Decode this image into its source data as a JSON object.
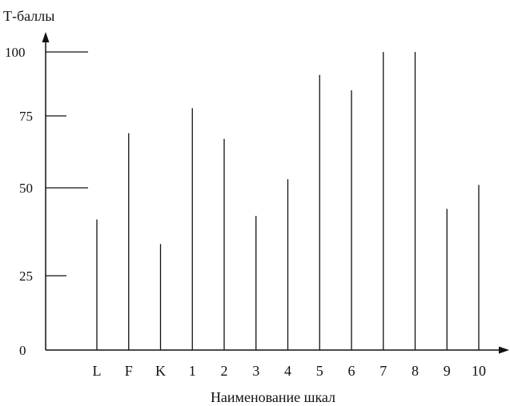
{
  "chart_data": {
    "type": "bar",
    "title": "",
    "ylabel": "Т-баллы",
    "xlabel": "Наименование шкал",
    "categories": [
      "L",
      "F",
      "K",
      "1",
      "2",
      "3",
      "4",
      "5",
      "6",
      "7",
      "8",
      "9",
      "10"
    ],
    "values": [
      41,
      69,
      34,
      78,
      67,
      42,
      53,
      91,
      85,
      100,
      100,
      44,
      51
    ],
    "y_ticks": [
      "100",
      "75",
      "50",
      "25",
      "0"
    ],
    "grid": false,
    "legend": "none",
    "color": "#111111"
  }
}
